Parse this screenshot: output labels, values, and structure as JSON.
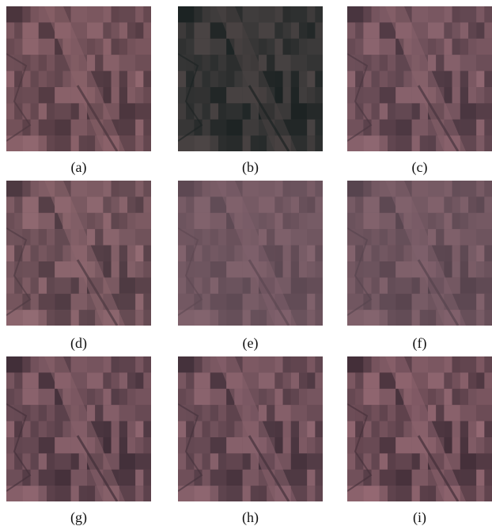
{
  "panels": [
    {
      "caption": "(a)"
    },
    {
      "caption": "(b)"
    },
    {
      "caption": "(c)"
    },
    {
      "caption": "(d)"
    },
    {
      "caption": "(e)"
    },
    {
      "caption": "(f)"
    },
    {
      "caption": "(g)"
    },
    {
      "caption": "(h)"
    },
    {
      "caption": "(i)"
    }
  ]
}
